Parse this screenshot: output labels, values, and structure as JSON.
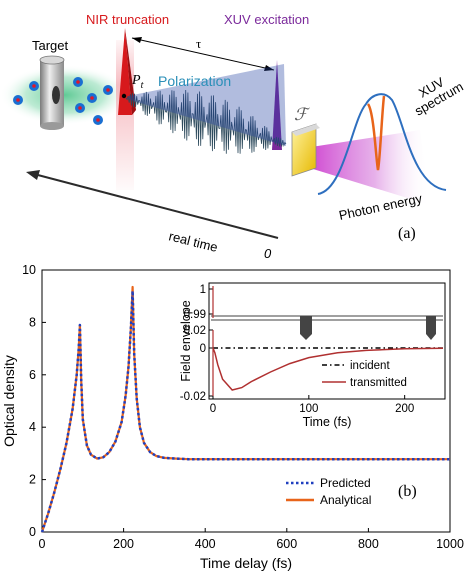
{
  "colors": {
    "nir_red": "#d7191c",
    "xuv_purple": "#7b2a9b",
    "polarization_blue": "#2a8fb8",
    "field_dark": "#2d4a5c",
    "spectrum_blue": "#2e6fbf",
    "spectrum_orange": "#e8641a",
    "predicted_blue": "#1f3fbf",
    "analytical_orange": "#e8641a",
    "transmitted_red": "#b03030",
    "incident_black": "#000000",
    "glass_yellow": "#e6c200"
  },
  "panel_a": {
    "target_label": "Target",
    "nir_label": "NIR truncation",
    "xuv_label": "XUV excitation",
    "tau_label": "τ",
    "pt_label": "P",
    "pt_sub": "t",
    "polarization_label": "Polarization",
    "fourier_label": "ℱ",
    "xuv_spectrum_label_1": "XUV",
    "xuv_spectrum_label_2": "spectrum",
    "photon_energy_label": "Photon energy",
    "real_time_label": "real time",
    "zero_label": "0",
    "panel_tag": "(a)"
  },
  "panel_b": {
    "panel_tag": "(b)",
    "legend_predicted": "Predicted",
    "legend_analytical": "Analytical",
    "inset": {
      "ylabel": "Field envelope",
      "xlabel": "Time (fs)",
      "yticks": [
        "1",
        "0.99",
        "0.02",
        "0",
        "-0.02"
      ],
      "xticks": [
        "0",
        "100",
        "200"
      ],
      "legend_incident": "incident",
      "legend_transmitted": "transmitted"
    }
  },
  "chart_data": {
    "type": "line",
    "xlabel": "Time delay (fs)",
    "ylabel": "Optical density",
    "xlim": [
      0,
      1000
    ],
    "ylim": [
      0,
      10
    ],
    "xticks": [
      0,
      200,
      400,
      600,
      800,
      1000
    ],
    "yticks": [
      0,
      2,
      4,
      6,
      8,
      10
    ],
    "legend_position": "bottom-right",
    "series": [
      {
        "name": "Predicted",
        "style": "dotted",
        "x": [
          0,
          15,
          30,
          45,
          60,
          75,
          85,
          90,
          93,
          96,
          100,
          110,
          120,
          135,
          150,
          165,
          180,
          195,
          205,
          212,
          218,
          222,
          226,
          232,
          240,
          250,
          265,
          280,
          300,
          330,
          360,
          400,
          450,
          500,
          600,
          700,
          800,
          900,
          1000
        ],
        "y": [
          0,
          0.7,
          1.5,
          2.4,
          3.4,
          4.7,
          6.0,
          7.0,
          7.9,
          5.8,
          4.3,
          3.3,
          2.95,
          2.8,
          2.85,
          3.05,
          3.45,
          4.2,
          5.2,
          6.3,
          7.8,
          9.2,
          6.8,
          5.1,
          4.0,
          3.4,
          3.05,
          2.9,
          2.83,
          2.8,
          2.78,
          2.78,
          2.78,
          2.78,
          2.78,
          2.78,
          2.78,
          2.78,
          2.78
        ]
      },
      {
        "name": "Analytical",
        "style": "solid",
        "x": [
          0,
          15,
          30,
          45,
          60,
          75,
          85,
          90,
          93,
          96,
          100,
          110,
          120,
          135,
          150,
          165,
          180,
          195,
          205,
          212,
          218,
          222,
          226,
          232,
          240,
          250,
          265,
          280,
          300,
          330,
          360,
          400,
          450,
          500,
          600,
          700,
          800,
          900,
          1000
        ],
        "y": [
          0,
          0.7,
          1.5,
          2.4,
          3.4,
          4.7,
          6.0,
          7.0,
          7.9,
          5.8,
          4.3,
          3.3,
          2.95,
          2.8,
          2.85,
          3.05,
          3.45,
          4.2,
          5.2,
          6.3,
          7.8,
          9.35,
          6.8,
          5.1,
          4.0,
          3.4,
          3.05,
          2.9,
          2.83,
          2.8,
          2.78,
          2.78,
          2.78,
          2.78,
          2.78,
          2.78,
          2.78,
          2.78,
          2.78
        ]
      }
    ],
    "inset_chart": {
      "type": "line",
      "xlim": [
        0,
        240
      ],
      "series": [
        {
          "name": "incident",
          "x": [
            0,
            240
          ],
          "y": [
            0,
            0
          ]
        },
        {
          "name": "transmitted",
          "x": [
            0,
            2,
            5,
            10,
            20,
            30,
            40,
            60,
            80,
            100,
            130,
            160,
            200,
            240
          ],
          "y": [
            0,
            -0.002,
            -0.007,
            -0.013,
            -0.0175,
            -0.0165,
            -0.014,
            -0.01,
            -0.0065,
            -0.004,
            -0.002,
            -0.001,
            -0.0003,
            -0.0001
          ]
        }
      ]
    }
  }
}
